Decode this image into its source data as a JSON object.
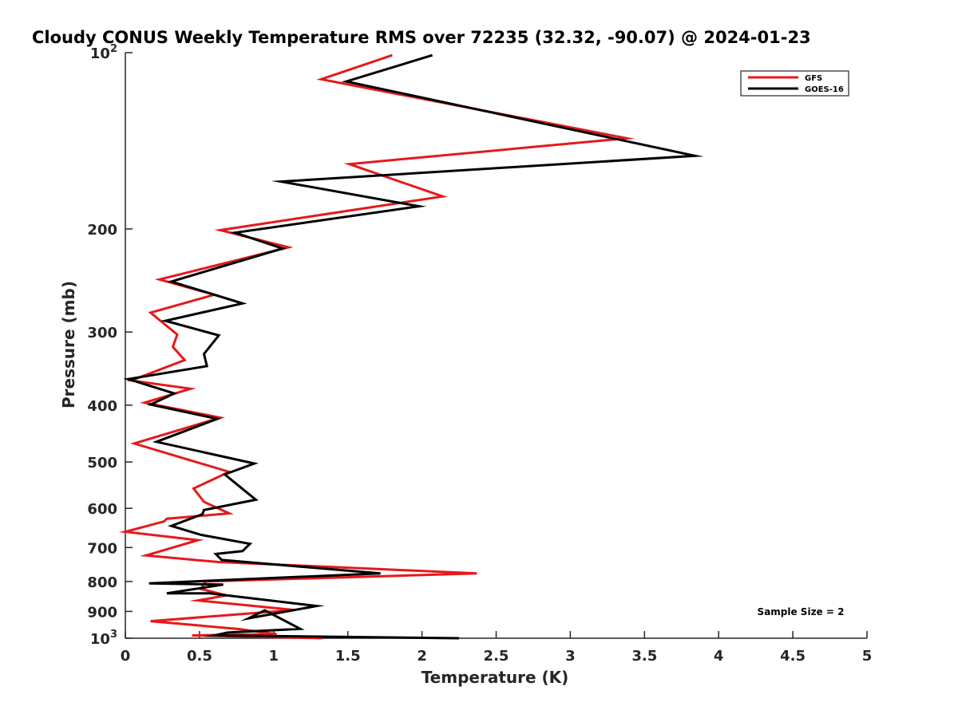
{
  "chart_data": {
    "type": "line",
    "title": "Cloudy CONUS Weekly Temperature RMS over 72235 (32.32, -90.07) @ 2024-01-23",
    "xlabel": "Temperature (K)",
    "ylabel": "Pressure (mb)",
    "xlim": [
      0,
      5
    ],
    "ylim": [
      100,
      1000
    ],
    "y_scale": "log",
    "y_reversed": true,
    "x_ticks": [
      "0",
      "0.5",
      "1",
      "1.5",
      "2",
      "2.5",
      "3",
      "3.5",
      "4",
      "4.5",
      "5"
    ],
    "y_ticks": [
      {
        "value": 100,
        "base": "10",
        "exp": "2"
      },
      {
        "value": 200,
        "label": "200"
      },
      {
        "value": 300,
        "label": "300"
      },
      {
        "value": 400,
        "label": "400"
      },
      {
        "value": 500,
        "label": "500"
      },
      {
        "value": 600,
        "label": "600"
      },
      {
        "value": 700,
        "label": "700"
      },
      {
        "value": 800,
        "label": "800"
      },
      {
        "value": 900,
        "label": "900"
      },
      {
        "value": 1000,
        "base": "10",
        "exp": "3"
      }
    ],
    "grid": false,
    "legend_position": "top-right",
    "annotation": "Sample Size = 2",
    "series": [
      {
        "name": "GFS",
        "color": "#e41a1c",
        "x": [
          1.8,
          1.32,
          3.38,
          1.51,
          2.14,
          0.64,
          1.1,
          0.23,
          0.6,
          0.17,
          0.35,
          0.32,
          0.4,
          0.04,
          0.44,
          0.13,
          0.64,
          0.06,
          0.7,
          0.46,
          0.53,
          0.7,
          0.28,
          0.26,
          0.0,
          0.49,
          0.14,
          0.62,
          2.37,
          0.54,
          0.51,
          0.68,
          0.49,
          1.14,
          0.17,
          0.77,
          1.02,
          0.45,
          1.33
        ],
        "y": [
          101,
          111,
          140,
          155,
          176,
          201,
          215,
          244,
          259,
          278,
          303,
          318,
          335,
          363,
          375,
          396,
          420,
          465,
          520,
          555,
          585,
          612,
          625,
          632,
          658,
          680,
          722,
          741,
          775,
          800,
          824,
          845,
          862,
          895,
          935,
          965,
          984,
          989,
          1000
        ]
      },
      {
        "name": "GOES-16",
        "color": "#000000",
        "x": [
          2.07,
          1.49,
          3.84,
          1.05,
          1.98,
          0.74,
          1.06,
          0.31,
          0.79,
          0.27,
          0.63,
          0.53,
          0.55,
          0.02,
          0.33,
          0.17,
          0.62,
          0.21,
          0.87,
          0.67,
          0.76,
          0.88,
          0.53,
          0.52,
          0.31,
          0.51,
          0.84,
          0.79,
          0.61,
          0.65,
          1.72,
          0.16,
          0.66,
          0.28,
          0.57,
          1.29,
          0.83,
          0.94,
          1.18,
          0.69,
          0.6,
          2.25
        ],
        "y": [
          101,
          112,
          150,
          166,
          183,
          203,
          216,
          246,
          268,
          287,
          304,
          327,
          343,
          361,
          382,
          399,
          422,
          462,
          503,
          525,
          548,
          580,
          604,
          614,
          643,
          666,
          690,
          710,
          718,
          735,
          775,
          806,
          810,
          838,
          838,
          881,
          925,
          896,
          964,
          978,
          989,
          1000
        ]
      }
    ]
  }
}
